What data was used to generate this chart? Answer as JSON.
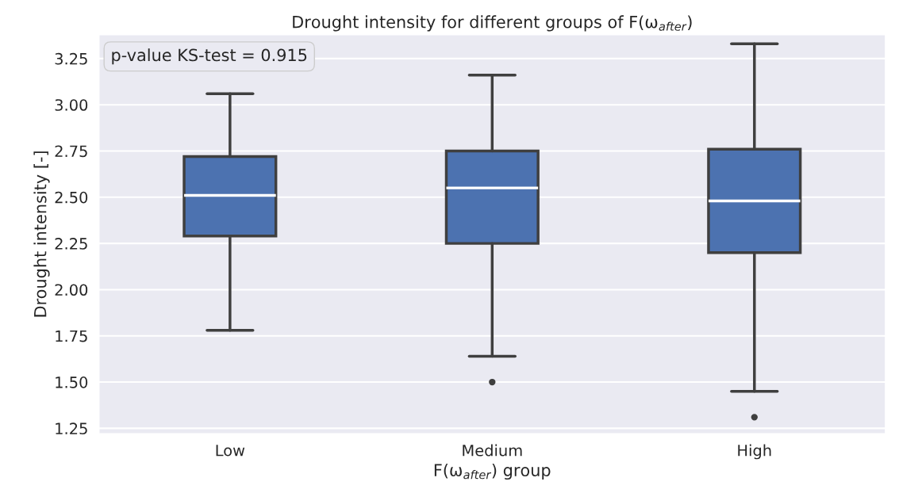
{
  "chart_data": {
    "type": "box",
    "title": "Drought intensity for different groups of F(ω$_{after}$)",
    "xlabel": "F(ω$_{after}$) group",
    "ylabel": "Drought intensity [-]",
    "categories": [
      "Low",
      "Medium",
      "High"
    ],
    "boxes": [
      {
        "low": 1.78,
        "q1": 2.29,
        "median": 2.51,
        "q3": 2.72,
        "high": 3.06
      },
      {
        "low": 1.64,
        "q1": 2.25,
        "median": 2.55,
        "q3": 2.75,
        "high": 3.16,
        "outliers": [
          1.5
        ]
      },
      {
        "low": 1.45,
        "q1": 2.2,
        "median": 2.48,
        "q3": 2.76,
        "high": 3.33,
        "outliers": [
          1.31
        ]
      }
    ],
    "color": "#4c72b0",
    "ylim": [
      1.22,
      3.38
    ],
    "yticks": [
      1.25,
      {
        "value": 1.5,
        "label": "1.50"
      },
      1.75,
      {
        "value": 2,
        "label": "2.00"
      },
      2.25,
      {
        "value": 2.5,
        "label": "2.50"
      },
      2.75,
      {
        "value": 3,
        "label": "3.00"
      },
      3.25
    ],
    "grid": "y",
    "annotations": [
      "p-value KS-test = 0.915"
    ]
  }
}
